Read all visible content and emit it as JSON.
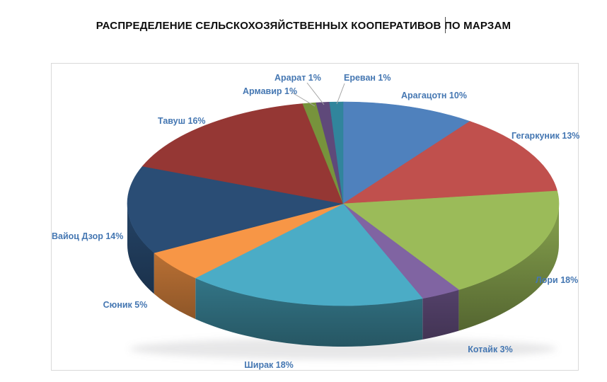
{
  "title": "РАСПРЕДЕЛЕНИЕ СЕЛЬСКОХОЗЯЙСТВЕННЫХ КООПЕРАТИВОВ ПО МАРЗАМ",
  "colors": {
    "label_text": "#4577B2",
    "leader_line": "#A6A6A6",
    "chart_border": "#D9D9D9",
    "title_text": "#0D0D0D"
  },
  "chart_data": {
    "type": "pie",
    "style": "3d",
    "title": "РАСПРЕДЕЛЕНИЕ СЕЛЬСКОХОЗЯЙСТВЕННЫХ КООПЕРАТИВОВ ПО МАРЗАМ",
    "unit": "%",
    "start_angle_deg": 0,
    "direction": "clockwise",
    "legend": "none",
    "label_format": "{label} {value}%",
    "slices": [
      {
        "label": "Арагацотн",
        "value": 10,
        "color": "#4F81BD"
      },
      {
        "label": "Гегаркуник",
        "value": 13,
        "color": "#C0504D"
      },
      {
        "label": "Лори",
        "value": 18,
        "color": "#9BBB59"
      },
      {
        "label": "Котайк",
        "value": 3,
        "color": "#8064A2"
      },
      {
        "label": "Ширак",
        "value": 18,
        "color": "#4BACC6"
      },
      {
        "label": "Сюник",
        "value": 5,
        "color": "#F79646"
      },
      {
        "label": "Вайоц Дзор",
        "value": 14,
        "color": "#2A4D75"
      },
      {
        "label": "Тавуш",
        "value": 16,
        "color": "#953734"
      },
      {
        "label": "Армавир",
        "value": 1,
        "color": "#77933C"
      },
      {
        "label": "Арарат",
        "value": 1,
        "color": "#5F497A"
      },
      {
        "label": "Ереван",
        "value": 1,
        "color": "#31859C"
      }
    ]
  }
}
